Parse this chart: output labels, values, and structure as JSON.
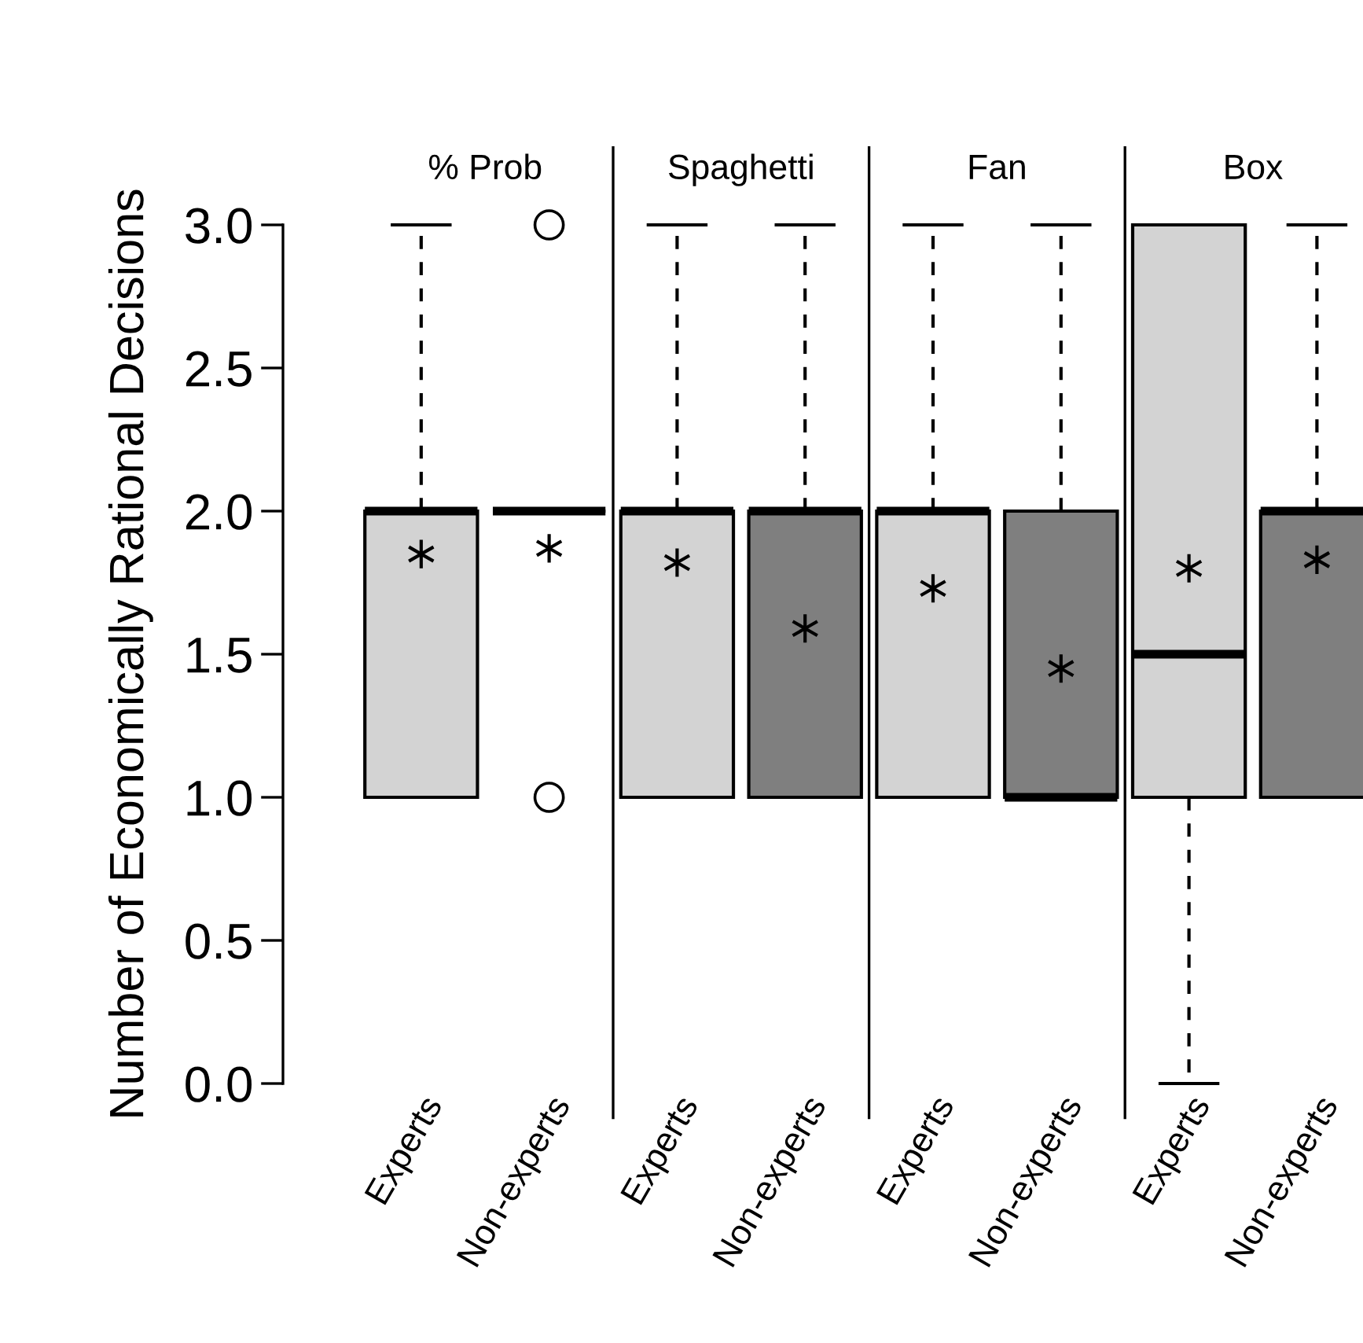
{
  "chart_data": {
    "type": "box",
    "ylabel": "Number of Economically Rational Decisions",
    "categories": [
      "Experts",
      "Non-experts",
      "Experts",
      "Non-experts",
      "Experts",
      "Non-experts",
      "Experts",
      "Non-experts"
    ],
    "colors": [
      "#d3d3d3",
      "#000000",
      "#d3d3d3",
      "#7f7f7f",
      "#d3d3d3",
      "#7f7f7f",
      "#d3d3d3",
      "#7f7f7f"
    ],
    "boxes": [
      {
        "low": 1,
        "q1": 1,
        "median": 2,
        "q3": 2,
        "high": 3,
        "mean": 1.85
      },
      {
        "low": 2,
        "q1": 2,
        "median": 2,
        "q3": 2,
        "high": 2,
        "mean": 1.87,
        "outliers": [
          1,
          3
        ]
      },
      {
        "low": 1,
        "q1": 1,
        "median": 2,
        "q3": 2,
        "high": 3,
        "mean": 1.82
      },
      {
        "low": 1,
        "q1": 1,
        "median": 2,
        "q3": 2,
        "high": 3,
        "mean": 1.59
      },
      {
        "low": 1,
        "q1": 1,
        "median": 2,
        "q3": 2,
        "high": 3,
        "mean": 1.73
      },
      {
        "low": 1,
        "q1": 1,
        "median": 1,
        "q3": 2,
        "high": 3,
        "mean": 1.45
      },
      {
        "low": 0,
        "q1": 1,
        "median": 1.5,
        "q3": 3,
        "high": 3,
        "mean": 1.8
      },
      {
        "low": 1,
        "q1": 1,
        "median": 2,
        "q3": 2,
        "high": 3,
        "mean": 1.83
      }
    ],
    "ylim": [
      0,
      3
    ],
    "yticks": [
      {
        "value": 0,
        "label": "0.0"
      },
      {
        "value": 0.5,
        "label": "0.5"
      },
      {
        "value": 1,
        "label": "1.0"
      },
      {
        "value": 1.5,
        "label": "1.5"
      },
      {
        "value": 2,
        "label": "2.0"
      },
      {
        "value": 2.5,
        "label": "2.5"
      },
      {
        "value": 3,
        "label": "3.0"
      }
    ],
    "annotations": [
      "% Prob",
      "Spaghetti",
      "Fan",
      "Box"
    ],
    "grid": false,
    "legend": false
  }
}
